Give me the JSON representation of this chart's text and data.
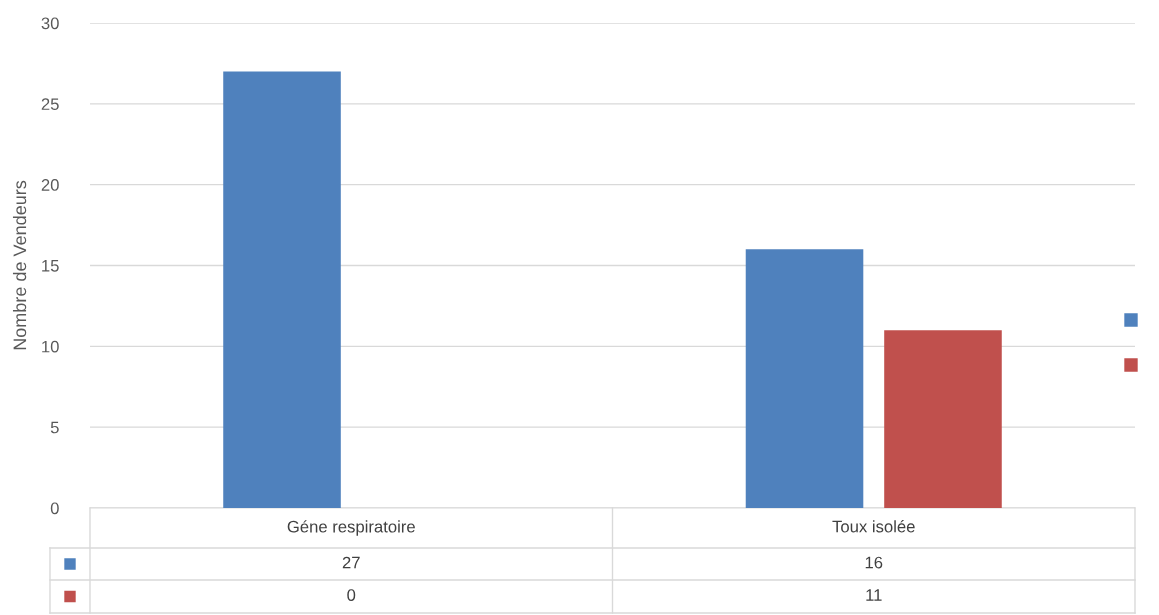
{
  "chart_data": {
    "type": "bar",
    "ylabel": "Nombre de Vendeurs",
    "categories": [
      "Géne respiratoire",
      "Toux isolée"
    ],
    "series": [
      {
        "color": "#4f81bd",
        "values": [
          27,
          16
        ]
      },
      {
        "color": "#c0504d",
        "values": [
          0,
          11
        ]
      }
    ],
    "ylim": [
      0,
      30
    ],
    "yticks": [
      0,
      5,
      10,
      15,
      20,
      25,
      30
    ],
    "grid": "y",
    "data_labels": true
  }
}
